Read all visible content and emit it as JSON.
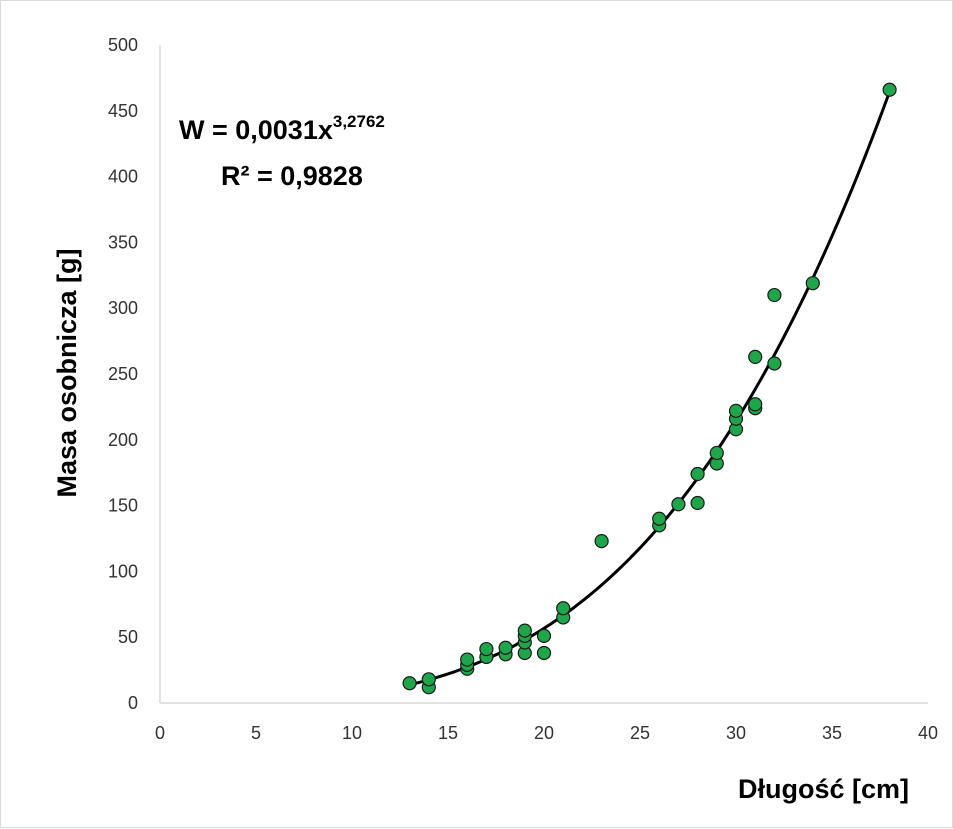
{
  "chart_data": {
    "type": "scatter",
    "xlabel": "Długość [cm]",
    "ylabel": "Masa osobnicza [g]",
    "xlim": [
      0,
      40
    ],
    "ylim": [
      0,
      500
    ],
    "x_ticks": [
      0,
      5,
      10,
      15,
      20,
      25,
      30,
      35,
      40
    ],
    "y_ticks": [
      0,
      50,
      100,
      150,
      200,
      250,
      300,
      350,
      400,
      450,
      500
    ],
    "grid": false,
    "legend": "none",
    "marker_color": "#1fa64a",
    "marker_edge_color": "#1a1a1a",
    "trendline_color": "#000000",
    "trendline": {
      "type": "power",
      "a": 0.0031,
      "b": 3.2762,
      "equation_prefix": "W = 0,0031x",
      "equation_exponent": "3,2762",
      "r2_label": "R² = 0,9828",
      "x_range": [
        13,
        38
      ]
    },
    "points": [
      {
        "x": 13,
        "y": 15
      },
      {
        "x": 14,
        "y": 12
      },
      {
        "x": 14,
        "y": 18
      },
      {
        "x": 16,
        "y": 26
      },
      {
        "x": 16,
        "y": 29
      },
      {
        "x": 16,
        "y": 33
      },
      {
        "x": 17,
        "y": 35
      },
      {
        "x": 17,
        "y": 41
      },
      {
        "x": 18,
        "y": 37
      },
      {
        "x": 18,
        "y": 42
      },
      {
        "x": 19,
        "y": 38
      },
      {
        "x": 19,
        "y": 46
      },
      {
        "x": 19,
        "y": 51
      },
      {
        "x": 19,
        "y": 55
      },
      {
        "x": 20,
        "y": 38
      },
      {
        "x": 20,
        "y": 51
      },
      {
        "x": 21,
        "y": 65
      },
      {
        "x": 21,
        "y": 72
      },
      {
        "x": 23,
        "y": 123
      },
      {
        "x": 26,
        "y": 135
      },
      {
        "x": 26,
        "y": 140
      },
      {
        "x": 27,
        "y": 151
      },
      {
        "x": 28,
        "y": 152
      },
      {
        "x": 28,
        "y": 174
      },
      {
        "x": 29,
        "y": 182
      },
      {
        "x": 29,
        "y": 190
      },
      {
        "x": 30,
        "y": 208
      },
      {
        "x": 30,
        "y": 216
      },
      {
        "x": 30,
        "y": 222
      },
      {
        "x": 31,
        "y": 224
      },
      {
        "x": 31,
        "y": 227
      },
      {
        "x": 31,
        "y": 263
      },
      {
        "x": 32,
        "y": 258
      },
      {
        "x": 32,
        "y": 310
      },
      {
        "x": 34,
        "y": 319
      },
      {
        "x": 38,
        "y": 466
      }
    ]
  }
}
